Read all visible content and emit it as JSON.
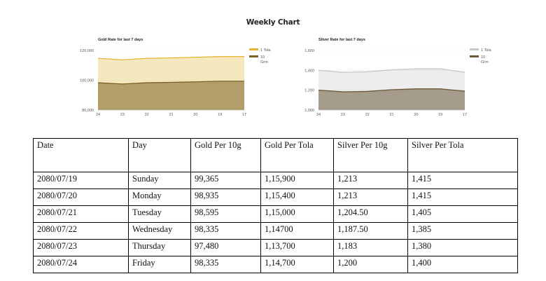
{
  "page": {
    "title": "Weekly Chart"
  },
  "chart_data": [
    {
      "type": "area",
      "title": "Gold Rate for last 7 days",
      "categories": [
        "24",
        "23",
        "22",
        "21",
        "20",
        "19",
        "17"
      ],
      "series": [
        {
          "name": "1 Tola",
          "values": [
            114700,
            113700,
            114700,
            115000,
            115400,
            115900,
            115900
          ]
        },
        {
          "name": "10 Grm",
          "values": [
            98335,
            97480,
            98335,
            98595,
            98935,
            99365,
            99365
          ]
        }
      ],
      "ylim": [
        80000,
        120000
      ],
      "yticks": [
        "80,000",
        "100,000",
        "120,000"
      ],
      "legend": "right",
      "colors": {
        "1 Tola": "#e3b636",
        "10 Grm": "#7a6126"
      }
    },
    {
      "type": "area",
      "title": "Silver Rate for last 7 days",
      "categories": [
        "24",
        "23",
        "22",
        "21",
        "20",
        "19",
        "17"
      ],
      "series": [
        {
          "name": "1 Tola",
          "values": [
            1400,
            1380,
            1385,
            1405,
            1415,
            1415,
            1380
          ]
        },
        {
          "name": "10 Grm",
          "values": [
            1200,
            1183,
            1187.5,
            1204.5,
            1213,
            1213,
            1190
          ]
        }
      ],
      "ylim": [
        1000,
        1600
      ],
      "yticks": [
        "1,000",
        "1,200",
        "1,400",
        "1,600"
      ],
      "legend": "right",
      "colors": {
        "1 Tola": "#c8c8c8",
        "10 Grm": "#6b5a3a"
      }
    }
  ],
  "table": {
    "headers": [
      "Date",
      "Day",
      "Gold Per 10g",
      "Gold  Per Tola",
      "Silver Per 10g",
      "Silver Per Tola"
    ],
    "rows": [
      [
        "2080/07/19",
        "Sunday",
        "99,365",
        "1,15,900",
        "1,213",
        "1,415"
      ],
      [
        "2080/07/20",
        "Monday",
        "98,935",
        "1,15,400",
        "1,213",
        "1,415"
      ],
      [
        "2080/07/21",
        "Tuesday",
        "98,595",
        "1,15,000",
        "1,204.50",
        "1,405"
      ],
      [
        "2080/07/22",
        "Wednesday",
        "98,335",
        "1,14700",
        "1,187.50",
        "1,385"
      ],
      [
        "2080/07/23",
        "Thursday",
        "97,480",
        "1,13,700",
        "1,183",
        "1,380"
      ],
      [
        "2080/07/24",
        "Friday",
        "98,335",
        "1,14,700",
        "1,200",
        "1,400"
      ]
    ]
  }
}
